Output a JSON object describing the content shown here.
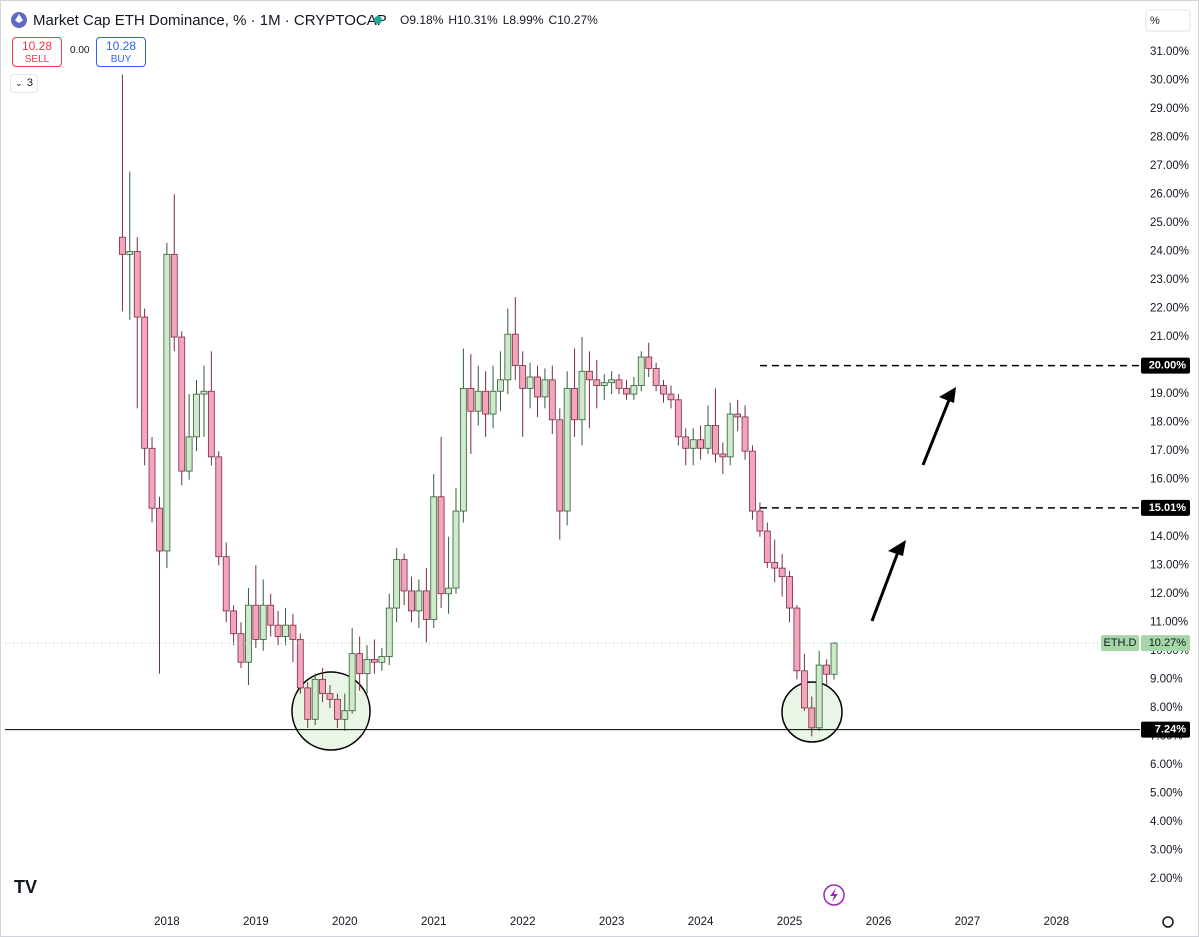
{
  "toolbar": {
    "title": "Market Cap ETH Dominance, % · 1M · CRYPTOCAP",
    "ohlc": [
      "O9.18%",
      "H10.31%",
      "L8.99%",
      "C10.27%"
    ],
    "sell_price": "10.28",
    "sell_label": "SELL",
    "spread": "0.00",
    "buy_price": "10.28",
    "buy_label": "BUY",
    "indicator_count": "3",
    "price_scale_unit": "%"
  },
  "chart_data": {
    "type": "candlestick",
    "x": [
      2017.5,
      2017.583,
      2017.667,
      2017.75,
      2017.833,
      2017.917,
      2018.0,
      2018.083,
      2018.167,
      2018.25,
      2018.333,
      2018.417,
      2018.5,
      2018.583,
      2018.667,
      2018.75,
      2018.833,
      2018.917,
      2019.0,
      2019.083,
      2019.167,
      2019.25,
      2019.333,
      2019.417,
      2019.5,
      2019.583,
      2019.667,
      2019.75,
      2019.833,
      2019.917,
      2020.0,
      2020.083,
      2020.167,
      2020.25,
      2020.333,
      2020.417,
      2020.5,
      2020.583,
      2020.667,
      2020.75,
      2020.833,
      2020.917,
      2021.0,
      2021.083,
      2021.167,
      2021.25,
      2021.333,
      2021.417,
      2021.5,
      2021.583,
      2021.667,
      2021.75,
      2021.833,
      2021.917,
      2022.0,
      2022.083,
      2022.167,
      2022.25,
      2022.333,
      2022.417,
      2022.5,
      2022.583,
      2022.667,
      2022.75,
      2022.833,
      2022.917,
      2023.0,
      2023.083,
      2023.167,
      2023.25,
      2023.333,
      2023.417,
      2023.5,
      2023.583,
      2023.667,
      2023.75,
      2023.833,
      2023.917,
      2024.0,
      2024.083,
      2024.167,
      2024.25,
      2024.333,
      2024.417,
      2024.5,
      2024.583,
      2024.667,
      2024.75,
      2024.833,
      2024.917,
      2025.0,
      2025.083,
      2025.167,
      2025.25,
      2025.333,
      2025.417,
      2025.5
    ],
    "open": [
      24.5,
      23.9,
      24.0,
      21.7,
      17.1,
      15.0,
      13.5,
      23.9,
      21.0,
      16.3,
      17.5,
      19.0,
      19.1,
      16.8,
      13.3,
      11.4,
      10.6,
      9.6,
      11.6,
      10.4,
      11.6,
      10.9,
      10.5,
      10.9,
      10.4,
      8.7,
      7.6,
      9.0,
      8.5,
      8.3,
      7.6,
      7.9,
      9.9,
      9.2,
      9.7,
      9.6,
      9.8,
      11.5,
      13.2,
      12.1,
      11.4,
      12.1,
      11.1,
      15.4,
      12.0,
      12.2,
      14.9,
      19.2,
      18.4,
      19.1,
      18.3,
      19.1,
      19.5,
      21.1,
      20.0,
      19.2,
      19.6,
      18.9,
      19.5,
      18.1,
      14.9,
      19.2,
      18.1,
      19.8,
      19.5,
      19.3,
      19.4,
      19.5,
      19.2,
      19.0,
      19.3,
      20.3,
      19.9,
      19.3,
      19.0,
      18.8,
      17.5,
      17.1,
      17.4,
      17.1,
      17.9,
      16.9,
      16.8,
      18.3,
      18.2,
      17.0,
      14.9,
      14.2,
      13.1,
      12.9,
      12.6,
      11.5,
      9.3,
      8.0,
      7.3,
      9.5,
      9.18
    ],
    "high": [
      30.2,
      26.8,
      24.5,
      22.0,
      17.5,
      15.4,
      24.3,
      26.0,
      21.2,
      19.0,
      19.5,
      20.0,
      20.5,
      17.0,
      13.8,
      11.6,
      11.0,
      12.2,
      13.0,
      12.5,
      12.0,
      11.4,
      11.5,
      11.3,
      10.6,
      8.9,
      9.2,
      9.4,
      8.8,
      8.5,
      8.5,
      10.8,
      10.5,
      10.2,
      10.4,
      10.1,
      12.0,
      13.6,
      13.4,
      12.6,
      12.5,
      12.9,
      16.2,
      17.5,
      14.0,
      15.7,
      20.6,
      20.4,
      20.0,
      19.8,
      20.0,
      20.5,
      22.0,
      22.4,
      20.5,
      20.1,
      20.0,
      19.9,
      20.0,
      18.5,
      19.8,
      20.6,
      21.0,
      20.5,
      20.2,
      19.7,
      19.8,
      19.7,
      19.5,
      19.6,
      20.5,
      20.8,
      20.1,
      19.5,
      19.3,
      19.0,
      17.8,
      17.8,
      17.9,
      18.6,
      19.2,
      17.3,
      18.7,
      18.8,
      18.6,
      17.2,
      15.2,
      14.5,
      13.9,
      13.4,
      12.8,
      11.6,
      9.9,
      8.4,
      10.0,
      9.7,
      10.31
    ],
    "low": [
      21.9,
      21.6,
      18.5,
      16.5,
      14.5,
      9.2,
      12.9,
      20.5,
      15.8,
      16.0,
      17.0,
      17.5,
      16.5,
      13.0,
      11.0,
      10.2,
      9.4,
      8.8,
      10.1,
      10.0,
      10.5,
      10.2,
      10.2,
      9.6,
      8.5,
      7.3,
      7.4,
      8.2,
      8.0,
      7.3,
      7.2,
      7.8,
      8.6,
      8.5,
      9.2,
      9.3,
      9.5,
      11.0,
      11.6,
      11.0,
      10.8,
      10.3,
      10.8,
      11.5,
      11.3,
      12.0,
      14.5,
      16.9,
      17.9,
      17.5,
      17.8,
      18.4,
      19.0,
      19.5,
      17.5,
      18.5,
      18.2,
      18.5,
      17.6,
      13.9,
      14.4,
      17.5,
      17.2,
      17.8,
      18.5,
      18.8,
      19.0,
      19.0,
      18.8,
      18.8,
      19.1,
      19.6,
      19.1,
      18.7,
      18.5,
      17.2,
      16.5,
      16.5,
      16.7,
      16.9,
      16.6,
      16.2,
      16.5,
      17.7,
      16.7,
      14.6,
      14.0,
      12.9,
      12.4,
      11.9,
      11.0,
      9.0,
      7.9,
      7.0,
      7.2,
      8.8,
      8.99
    ],
    "close": [
      23.9,
      24.0,
      21.7,
      17.1,
      15.0,
      13.5,
      23.9,
      21.0,
      16.3,
      17.5,
      19.0,
      19.1,
      16.8,
      13.3,
      11.4,
      10.6,
      9.6,
      11.6,
      10.4,
      11.6,
      10.9,
      10.5,
      10.9,
      10.4,
      8.7,
      7.6,
      9.0,
      8.5,
      8.3,
      7.6,
      7.9,
      9.9,
      9.2,
      9.7,
      9.6,
      9.8,
      11.5,
      13.2,
      12.1,
      11.4,
      12.1,
      11.1,
      15.4,
      12.0,
      12.2,
      14.9,
      19.2,
      18.4,
      19.1,
      18.3,
      19.1,
      19.5,
      21.1,
      20.0,
      19.2,
      19.6,
      18.9,
      19.5,
      18.1,
      14.9,
      19.2,
      18.1,
      19.8,
      19.5,
      19.3,
      19.4,
      19.5,
      19.2,
      19.0,
      19.3,
      20.3,
      19.9,
      19.3,
      19.0,
      18.8,
      17.5,
      17.1,
      17.4,
      17.1,
      17.9,
      16.9,
      16.8,
      18.3,
      18.2,
      17.0,
      14.9,
      14.2,
      13.1,
      12.9,
      12.6,
      11.5,
      9.3,
      8.0,
      7.3,
      9.5,
      9.18,
      10.27
    ],
    "up_color": "#cfe9cb",
    "up_border": "#2f5e36",
    "down_color": "#f3a5ba",
    "down_border": "#7d2a44",
    "xlim": [
      2016.18,
      2028.94
    ],
    "xticks": [
      2018,
      2019,
      2020,
      2021,
      2022,
      2023,
      2024,
      2025,
      2026,
      2027,
      2028
    ],
    "ylim": [
      1.09,
      32.64
    ],
    "yticks": [
      {
        "value": 2,
        "label": "2.00%"
      },
      {
        "value": 3,
        "label": "3.00%"
      },
      {
        "value": 4,
        "label": "4.00%"
      },
      {
        "value": 5,
        "label": "5.00%"
      },
      {
        "value": 6,
        "label": "6.00%"
      },
      {
        "value": 7,
        "label": "7.00%"
      },
      {
        "value": 8,
        "label": "8.00%"
      },
      {
        "value": 9,
        "label": "9.00%"
      },
      {
        "value": 10,
        "label": "10.00%"
      },
      {
        "value": 11,
        "label": "11.00%"
      },
      {
        "value": 12,
        "label": "12.00%"
      },
      {
        "value": 13,
        "label": "13.00%"
      },
      {
        "value": 14,
        "label": "14.00%"
      },
      {
        "value": 15,
        "label": "15.00%"
      },
      {
        "value": 16,
        "label": "16.00%"
      },
      {
        "value": 17,
        "label": "17.00%"
      },
      {
        "value": 18,
        "label": "18.00%"
      },
      {
        "value": 19,
        "label": "19.00%"
      },
      {
        "value": 20,
        "label": "20.00%"
      },
      {
        "value": 21,
        "label": "21.00%"
      },
      {
        "value": 22,
        "label": "22.00%"
      },
      {
        "value": 23,
        "label": "23.00%"
      },
      {
        "value": 24,
        "label": "24.00%"
      },
      {
        "value": 25,
        "label": "25.00%"
      },
      {
        "value": 26,
        "label": "26.00%"
      },
      {
        "value": 27,
        "label": "27.00%"
      },
      {
        "value": 28,
        "label": "28.00%"
      },
      {
        "value": 29,
        "label": "29.00%"
      },
      {
        "value": 30,
        "label": "30.00%"
      },
      {
        "value": 31,
        "label": "31.00%"
      }
    ],
    "levels": [
      {
        "value": 20,
        "label": "20.00%",
        "style": "dashed"
      },
      {
        "value": 15.01,
        "label": "15.01%",
        "style": "dashed"
      },
      {
        "value": 7.24,
        "label": "7.24%",
        "style": "solid"
      }
    ],
    "last": {
      "name": "ETH.D",
      "value": 10.27,
      "label": "10.27%",
      "color": "#a5d6a7"
    }
  }
}
